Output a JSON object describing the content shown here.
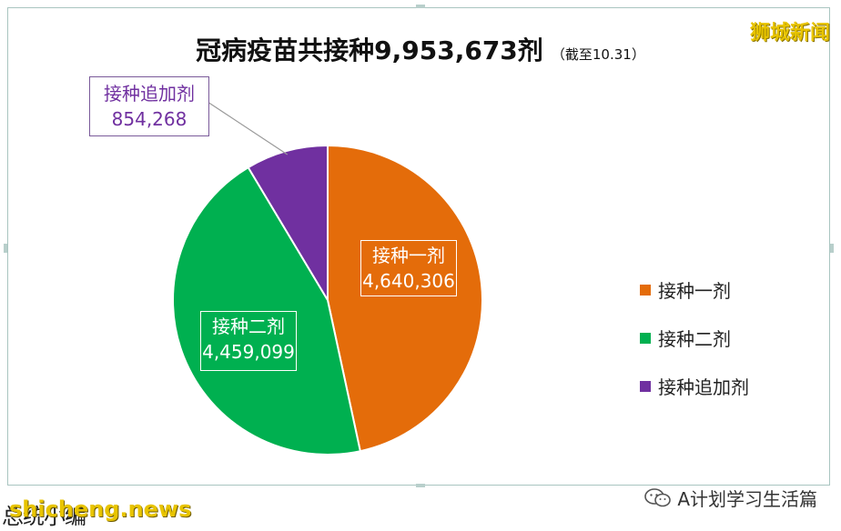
{
  "title": "冠病疫苗共接种9,953,673剂",
  "subtitle": "（截至10.31）",
  "brand": "狮城新闻",
  "chart_data": {
    "type": "pie",
    "title": "冠病疫苗共接种9,953,673剂",
    "subtitle": "（截至10.31）",
    "slices": [
      {
        "label": "接种一剂",
        "value": 4640306,
        "value_text": "4,640,306",
        "color": "#e46c0a"
      },
      {
        "label": "接种二剂",
        "value": 4459099,
        "value_text": "4,459,099",
        "color": "#00b050"
      },
      {
        "label": "接种追加剂",
        "value": 854268,
        "value_text": "854,268",
        "color": "#7030a0"
      }
    ],
    "legend": [
      "接种一剂",
      "接种二剂",
      "接种追加剂"
    ],
    "legend_position": "right"
  },
  "footer": {
    "left_text": "总统小编",
    "site": "shicheng.news",
    "right_text": "A计划学习生活篇",
    "right_icon": "wechat-icon"
  }
}
